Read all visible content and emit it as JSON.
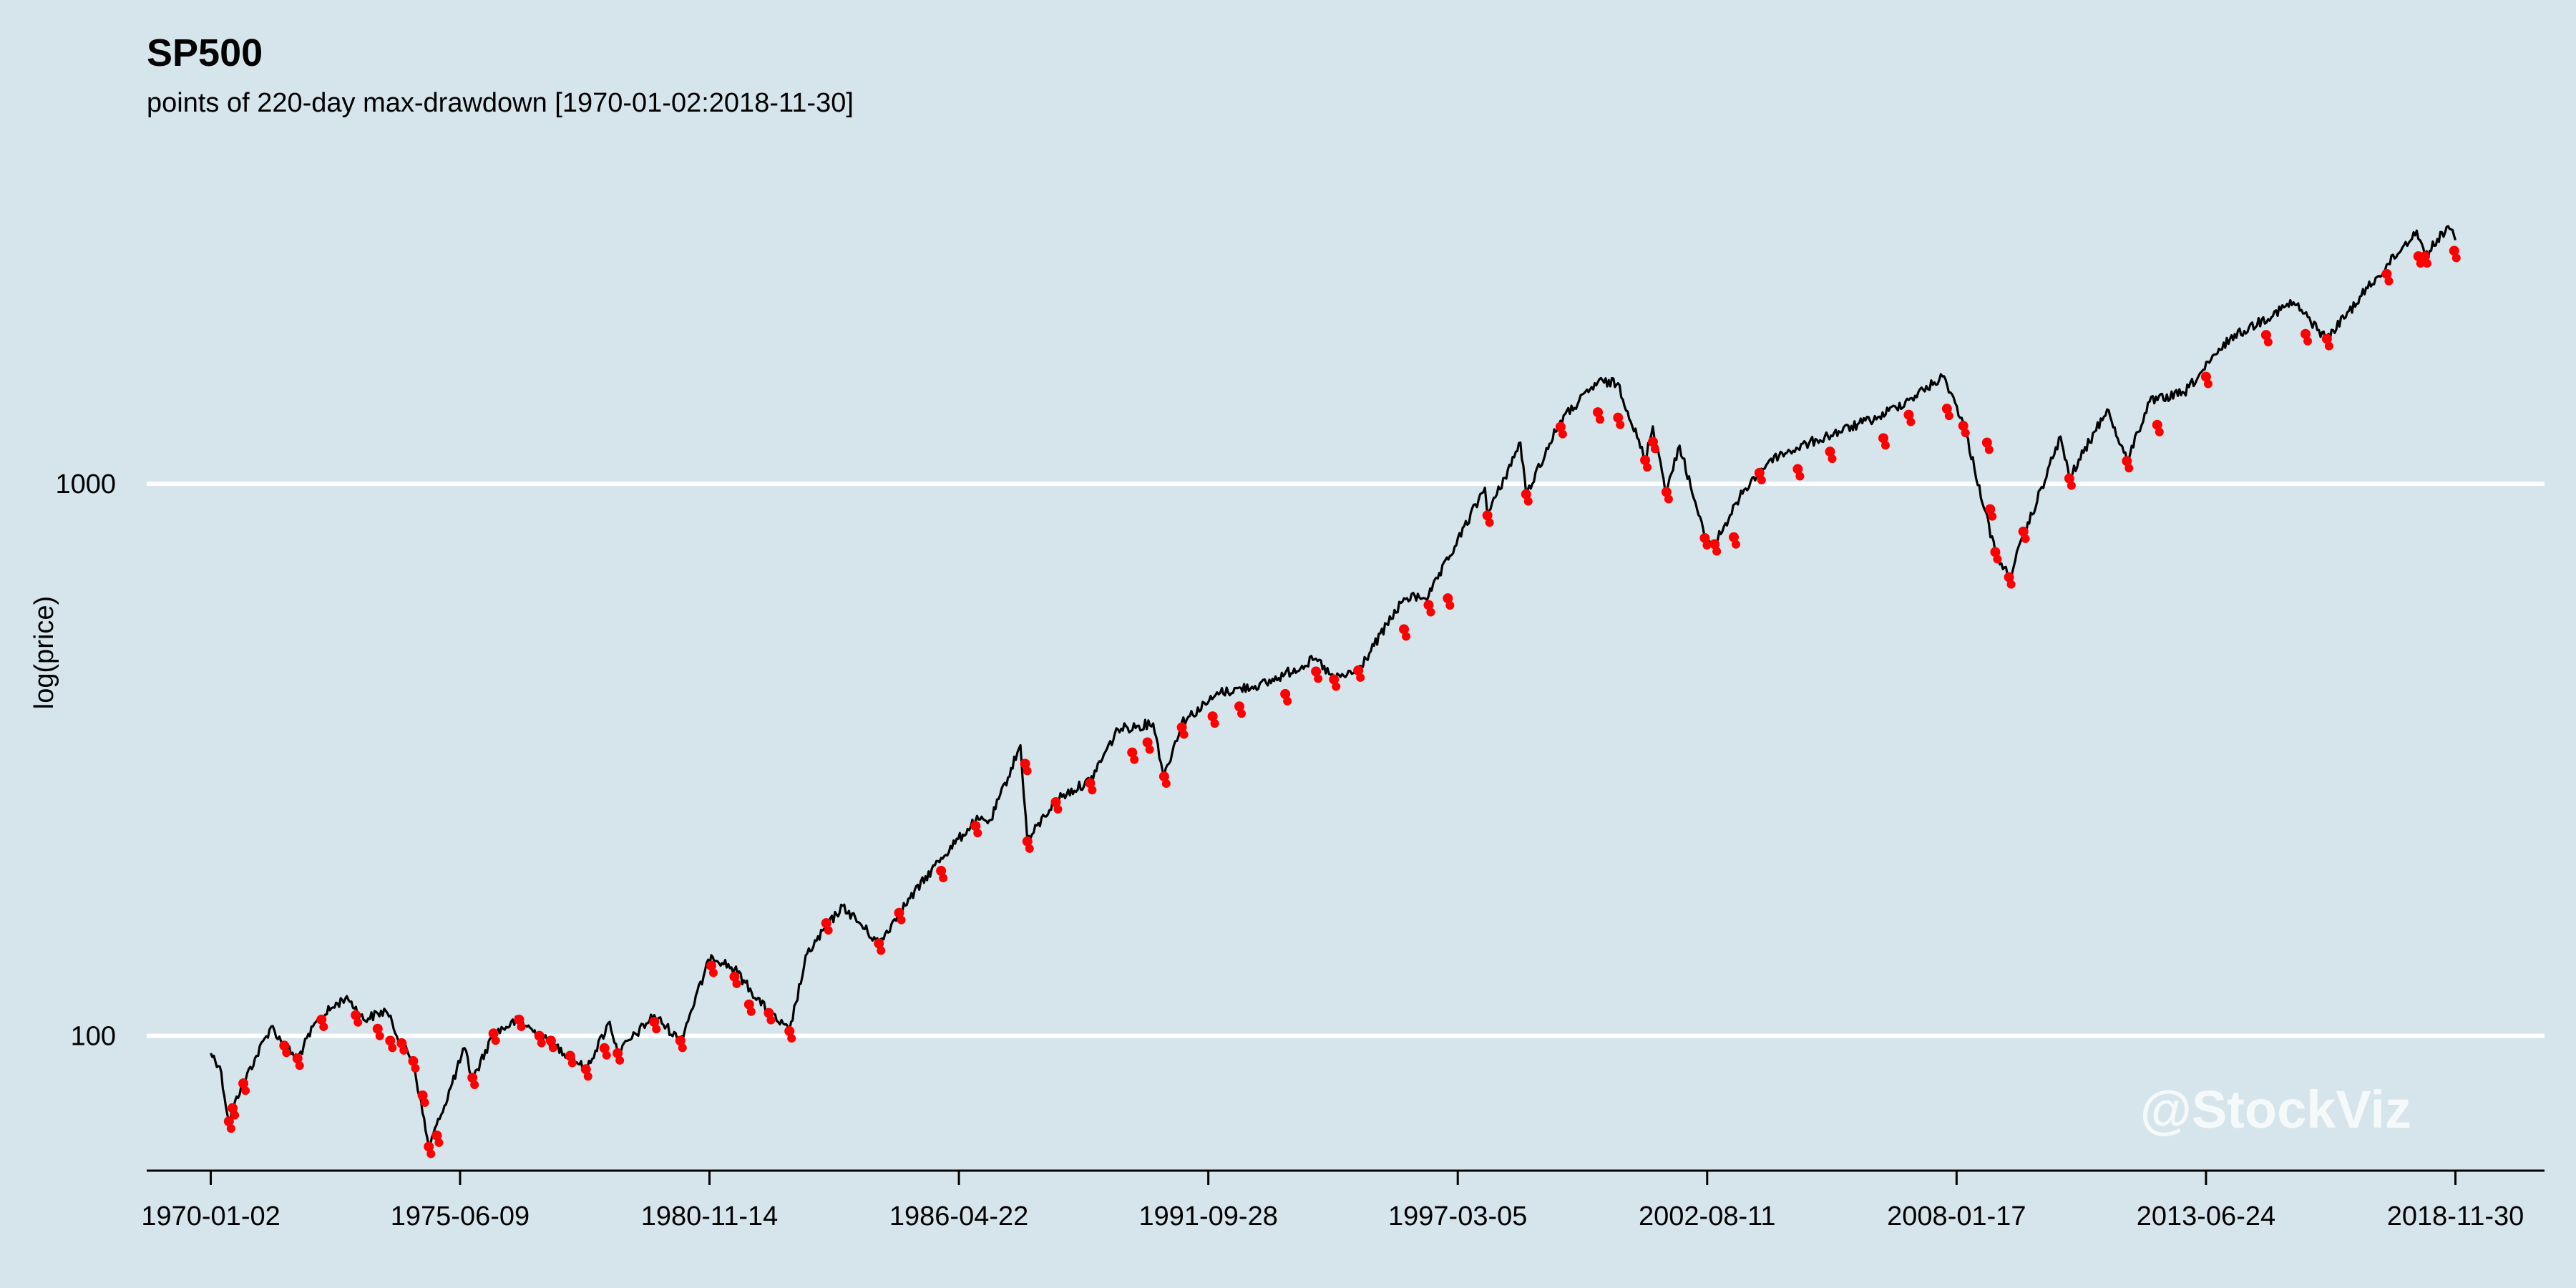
{
  "chart_data": {
    "type": "line",
    "title": "SP500",
    "subtitle": "points of 220-day max-drawdown [1970-01-02:2018-11-30]",
    "ylabel": "log(price)",
    "xlabel": "",
    "y_scale": "log",
    "ylim": [
      57,
      4200
    ],
    "xlim": [
      "1968-08-10",
      "2020-11-08"
    ],
    "y_ticks": [
      {
        "value": 100,
        "label": "100"
      },
      {
        "value": 1000,
        "label": "1000"
      }
    ],
    "x_ticks": [
      "1970-01-02",
      "1975-06-09",
      "1980-11-14",
      "1986-04-22",
      "1991-09-28",
      "1997-03-05",
      "2002-08-11",
      "2008-01-17",
      "2013-06-24",
      "2018-11-30"
    ],
    "grid": {
      "horizontal": true,
      "vertical": false,
      "color": "#ffffff"
    },
    "line_color": "#000000",
    "point_color": "#ff0000",
    "series": [
      {
        "values": [
          [
            "1970-01-02",
            93
          ],
          [
            "1970-03-15",
            88
          ],
          [
            "1970-05-26",
            70
          ],
          [
            "1970-09-01",
            81
          ],
          [
            "1971-01-01",
            92
          ],
          [
            "1971-04-28",
            104
          ],
          [
            "1971-08-10",
            96
          ],
          [
            "1971-11-23",
            91
          ],
          [
            "1972-05-01",
            107
          ],
          [
            "1972-12-20",
            118
          ],
          [
            "1973-05-01",
            107
          ],
          [
            "1973-10-26",
            111
          ],
          [
            "1974-03-01",
            97
          ],
          [
            "1974-06-01",
            90
          ],
          [
            "1974-10-03",
            63
          ],
          [
            "1975-01-10",
            72
          ],
          [
            "1975-07-15",
            95
          ],
          [
            "1975-09-15",
            83
          ],
          [
            "1976-03-01",
            101
          ],
          [
            "1976-09-21",
            107
          ],
          [
            "1977-03-01",
            100
          ],
          [
            "1977-11-01",
            92
          ],
          [
            "1978-03-06",
            87
          ],
          [
            "1978-09-12",
            106
          ],
          [
            "1978-11-14",
            93
          ],
          [
            "1979-09-01",
            109
          ],
          [
            "1980-03-27",
            98
          ],
          [
            "1980-11-28",
            140
          ],
          [
            "1981-06-01",
            132
          ],
          [
            "1982-03-01",
            110
          ],
          [
            "1982-08-12",
            102
          ],
          [
            "1983-01-01",
            141
          ],
          [
            "1983-10-10",
            172
          ],
          [
            "1984-07-24",
            147
          ],
          [
            "1985-01-01",
            167
          ],
          [
            "1985-12-01",
            210
          ],
          [
            "1986-09-01",
            245
          ],
          [
            "1987-01-01",
            246
          ],
          [
            "1987-08-25",
            336
          ],
          [
            "1987-10-19",
            225
          ],
          [
            "1988-06-01",
            268
          ],
          [
            "1989-03-01",
            290
          ],
          [
            "1989-10-09",
            359
          ],
          [
            "1990-07-16",
            368
          ],
          [
            "1990-10-11",
            295
          ],
          [
            "1991-03-01",
            370
          ],
          [
            "1992-01-01",
            418
          ],
          [
            "1993-01-01",
            435
          ],
          [
            "1994-02-01",
            482
          ],
          [
            "1994-06-24",
            442
          ],
          [
            "1995-01-03",
            459
          ],
          [
            "1996-01-02",
            620
          ],
          [
            "1996-07-16",
            626
          ],
          [
            "1997-01-02",
            740
          ],
          [
            "1997-10-07",
            983
          ],
          [
            "1997-10-27",
            876
          ],
          [
            "1998-07-17",
            1187
          ],
          [
            "1998-08-31",
            957
          ],
          [
            "1999-06-01",
            1300
          ],
          [
            "2000-03-24",
            1527
          ],
          [
            "2000-09-01",
            1520
          ],
          [
            "2001-04-04",
            1103
          ],
          [
            "2001-06-05",
            1270
          ],
          [
            "2001-09-21",
            966
          ],
          [
            "2002-01-04",
            1172
          ],
          [
            "2002-07-23",
            797
          ],
          [
            "2002-10-09",
            777
          ],
          [
            "2003-06-01",
            975
          ],
          [
            "2004-01-01",
            1110
          ],
          [
            "2005-01-01",
            1200
          ],
          [
            "2006-05-01",
            1320
          ],
          [
            "2007-01-01",
            1418
          ],
          [
            "2007-10-09",
            1565
          ],
          [
            "2008-03-10",
            1290
          ],
          [
            "2008-11-20",
            752
          ],
          [
            "2009-03-09",
            677
          ],
          [
            "2010-04-23",
            1217
          ],
          [
            "2010-07-02",
            1022
          ],
          [
            "2011-04-29",
            1363
          ],
          [
            "2011-10-03",
            1099
          ],
          [
            "2012-04-01",
            1408
          ],
          [
            "2013-01-01",
            1460
          ],
          [
            "2014-01-01",
            1830
          ],
          [
            "2015-05-21",
            2131
          ],
          [
            "2016-02-11",
            1829
          ],
          [
            "2017-01-01",
            2260
          ],
          [
            "2018-01-26",
            2873
          ],
          [
            "2018-04-02",
            2581
          ],
          [
            "2018-10-03",
            2925
          ],
          [
            "2018-11-30",
            2760
          ]
        ]
      }
    ],
    "drawdown_points": [
      [
        "1970-05-26",
        70
      ],
      [
        "1970-06-25",
        74
      ],
      [
        "1970-09-18",
        82
      ],
      [
        "1971-08-10",
        96
      ],
      [
        "1971-11-23",
        91
      ],
      [
        "1972-06-01",
        107
      ],
      [
        "1973-03-01",
        109
      ],
      [
        "1973-08-22",
        103
      ],
      [
        "1973-11-30",
        98
      ],
      [
        "1974-03-01",
        97
      ],
      [
        "1974-06-01",
        90
      ],
      [
        "1974-08-15",
        78
      ],
      [
        "1974-10-03",
        63
      ],
      [
        "1974-12-06",
        66
      ],
      [
        "1975-09-15",
        84
      ],
      [
        "1976-03-01",
        101
      ],
      [
        "1976-09-21",
        107
      ],
      [
        "1977-03-01",
        100
      ],
      [
        "1977-06-01",
        98
      ],
      [
        "1977-11-01",
        92
      ],
      [
        "1978-03-06",
        87
      ],
      [
        "1978-08-01",
        95
      ],
      [
        "1978-11-14",
        93
      ],
      [
        "1979-09-01",
        106
      ],
      [
        "1980-03-27",
        98
      ],
      [
        "1980-11-28",
        134
      ],
      [
        "1981-06-01",
        128
      ],
      [
        "1981-09-25",
        114
      ],
      [
        "1982-03-01",
        110
      ],
      [
        "1982-08-12",
        102
      ],
      [
        "1983-06-01",
        160
      ],
      [
        "1984-07-24",
        147
      ],
      [
        "1985-01-01",
        167
      ],
      [
        "1985-12-01",
        199
      ],
      [
        "1986-09-01",
        240
      ],
      [
        "1987-10-01",
        311
      ],
      [
        "1987-10-19",
        225
      ],
      [
        "1988-06-01",
        265
      ],
      [
        "1989-03-01",
        287
      ],
      [
        "1990-01-30",
        326
      ],
      [
        "1990-06-01",
        340
      ],
      [
        "1990-10-11",
        295
      ],
      [
        "1991-03-01",
        362
      ],
      [
        "1991-11-01",
        379
      ],
      [
        "1992-06-01",
        395
      ],
      [
        "1993-06-01",
        416
      ],
      [
        "1994-02-01",
        457
      ],
      [
        "1994-06-24",
        442
      ],
      [
        "1995-01-03",
        459
      ],
      [
        "1996-01-02",
        545
      ],
      [
        "1996-07-16",
        603
      ],
      [
        "1996-12-16",
        620
      ],
      [
        "1997-10-27",
        876
      ],
      [
        "1998-08-31",
        957
      ],
      [
        "1999-06-01",
        1267
      ],
      [
        "2000-03-24",
        1347
      ],
      [
        "2000-09-01",
        1317
      ],
      [
        "2001-04-04",
        1103
      ],
      [
        "2001-06-05",
        1191
      ],
      [
        "2001-09-21",
        966
      ],
      [
        "2002-07-23",
        797
      ],
      [
        "2002-10-09",
        777
      ],
      [
        "2003-03-11",
        800
      ],
      [
        "2003-10-01",
        1046
      ],
      [
        "2004-08-01",
        1063
      ],
      [
        "2005-04-15",
        1143
      ],
      [
        "2006-06-13",
        1209
      ],
      [
        "2007-01-01",
        1333
      ],
      [
        "2007-11-01",
        1367
      ],
      [
        "2008-03-10",
        1273
      ],
      [
        "2008-09-15",
        1187
      ],
      [
        "2008-10-10",
        899
      ],
      [
        "2008-11-20",
        752
      ],
      [
        "2009-03-09",
        677
      ],
      [
        "2009-07-01",
        819
      ],
      [
        "2010-07-02",
        1022
      ],
      [
        "2011-10-03",
        1099
      ],
      [
        "2012-06-01",
        1278
      ],
      [
        "2013-06-24",
        1562
      ],
      [
        "2014-10-15",
        1859
      ],
      [
        "2015-08-25",
        1867
      ],
      [
        "2016-02-11",
        1829
      ],
      [
        "2017-06-01",
        2398
      ],
      [
        "2018-02-08",
        2581
      ],
      [
        "2018-04-02",
        2581
      ],
      [
        "2018-11-20",
        2641
      ]
    ],
    "watermark": "@StockViz"
  }
}
